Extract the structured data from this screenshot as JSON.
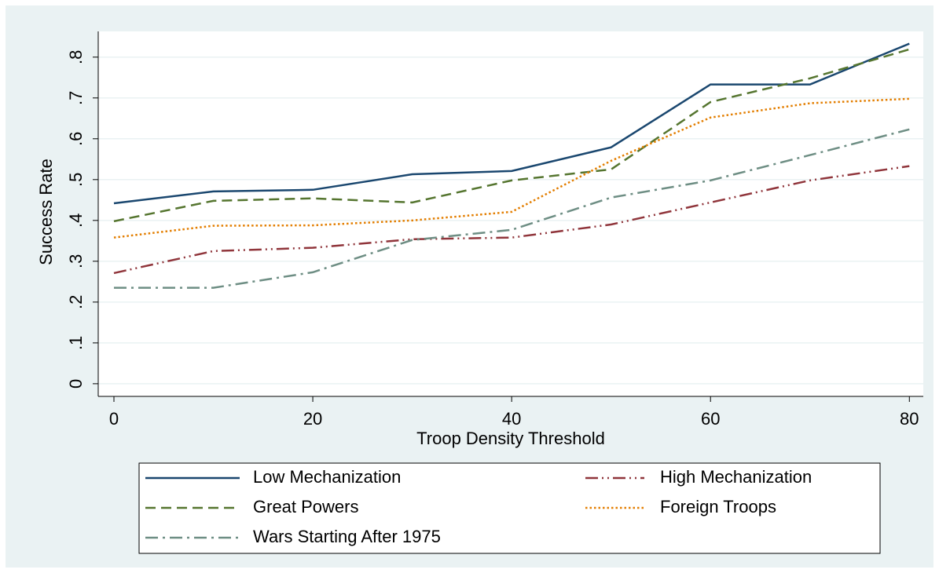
{
  "chart_data": {
    "type": "line",
    "x_label": "Troop Density Threshold",
    "y_label": "Success Rate",
    "x": [
      0,
      10,
      20,
      30,
      40,
      50,
      60,
      70,
      80
    ],
    "series": [
      {
        "name": "Low Mechanization",
        "color": "#1a476f",
        "dash": "solid",
        "values": [
          0.442,
          0.471,
          0.475,
          0.513,
          0.521,
          0.579,
          0.733,
          0.733,
          0.833
        ]
      },
      {
        "name": "High Mechanization",
        "color": "#90353b",
        "dash": "dash-dot-dot",
        "values": [
          0.271,
          0.325,
          0.333,
          0.354,
          0.358,
          0.39,
          0.444,
          0.498,
          0.533
        ]
      },
      {
        "name": "Great Powers",
        "color": "#55752f",
        "dash": "dash",
        "values": [
          0.398,
          0.448,
          0.454,
          0.444,
          0.498,
          0.525,
          0.69,
          0.748,
          0.819
        ]
      },
      {
        "name": "Foreign Troops",
        "color": "#e37e00",
        "dash": "dot",
        "values": [
          0.358,
          0.387,
          0.388,
          0.4,
          0.421,
          0.546,
          0.652,
          0.687,
          0.698
        ]
      },
      {
        "name": "Wars Starting After 1975",
        "color": "#6e8e84",
        "dash": "dash-dot",
        "values": [
          0.235,
          0.235,
          0.273,
          0.352,
          0.377,
          0.456,
          0.498,
          0.56,
          0.623
        ]
      }
    ],
    "xlim": [
      -1.58,
      81.4
    ],
    "xticks": [
      0,
      20,
      40,
      60,
      80
    ],
    "ylim": [
      -0.031,
      0.863
    ],
    "yticks": [
      0,
      {
        "value": 0.1,
        "label": ".1"
      },
      {
        "value": 0.2,
        "label": ".2"
      },
      {
        "value": 0.3,
        "label": ".3"
      },
      {
        "value": 0.4,
        "label": ".4"
      },
      {
        "value": 0.5,
        "label": ".5"
      },
      {
        "value": 0.6,
        "label": ".6"
      },
      {
        "value": 0.7,
        "label": ".7"
      },
      {
        "value": 0.8,
        "label": ".8"
      }
    ],
    "grid": true,
    "legend": "bottom"
  }
}
